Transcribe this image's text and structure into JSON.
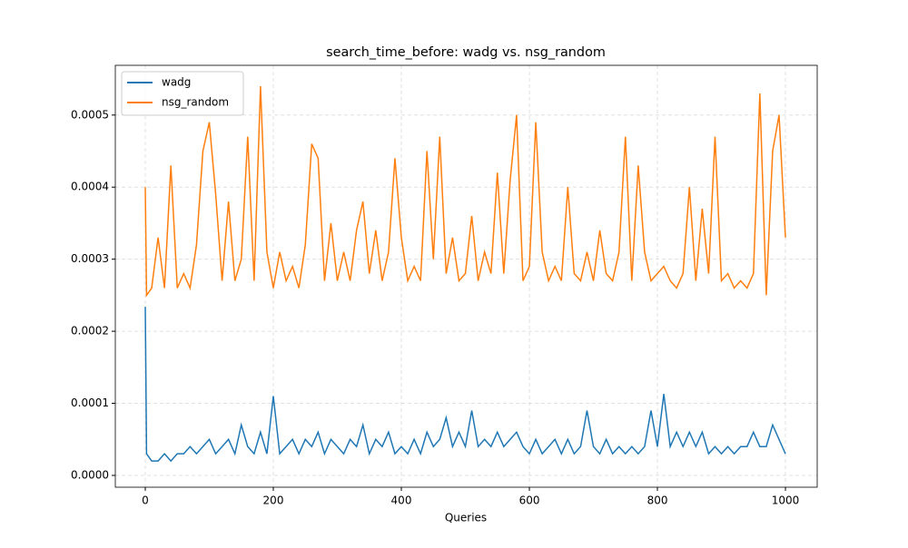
{
  "chart_data": {
    "type": "line",
    "title": "search_time_before: wadg vs. nsg_random",
    "x_label": "Queries",
    "x": [
      0,
      2,
      10,
      20,
      30,
      40,
      50,
      60,
      70,
      80,
      90,
      100,
      110,
      120,
      130,
      140,
      150,
      160,
      170,
      180,
      190,
      200,
      210,
      220,
      230,
      240,
      250,
      260,
      270,
      280,
      290,
      300,
      310,
      320,
      330,
      340,
      350,
      360,
      370,
      380,
      390,
      400,
      410,
      420,
      430,
      440,
      450,
      460,
      470,
      480,
      490,
      500,
      510,
      520,
      530,
      540,
      550,
      560,
      570,
      580,
      590,
      600,
      610,
      620,
      630,
      640,
      650,
      660,
      670,
      680,
      690,
      700,
      710,
      720,
      730,
      740,
      750,
      760,
      770,
      780,
      790,
      800,
      810,
      820,
      830,
      840,
      850,
      860,
      870,
      880,
      890,
      900,
      910,
      920,
      930,
      940,
      950,
      960,
      970,
      980,
      990,
      1000
    ],
    "series": [
      {
        "name": "wadg",
        "color": "#1f77b4",
        "values": [
          0.000234,
          3e-05,
          2e-05,
          2e-05,
          3e-05,
          2e-05,
          3e-05,
          3e-05,
          4e-05,
          3e-05,
          4e-05,
          5e-05,
          3e-05,
          4e-05,
          5e-05,
          3e-05,
          7e-05,
          4e-05,
          3e-05,
          6e-05,
          3e-05,
          0.00011,
          3e-05,
          4e-05,
          5e-05,
          3e-05,
          5e-05,
          4e-05,
          6e-05,
          3e-05,
          5e-05,
          4e-05,
          3e-05,
          5e-05,
          4e-05,
          7e-05,
          3e-05,
          5e-05,
          4e-05,
          6e-05,
          3e-05,
          4e-05,
          3e-05,
          5e-05,
          3e-05,
          6e-05,
          4e-05,
          5e-05,
          8e-05,
          4e-05,
          6e-05,
          4e-05,
          9e-05,
          4e-05,
          5e-05,
          4e-05,
          6e-05,
          4e-05,
          5e-05,
          6e-05,
          4e-05,
          3e-05,
          5e-05,
          3e-05,
          4e-05,
          5e-05,
          3e-05,
          5e-05,
          3e-05,
          4e-05,
          9e-05,
          4e-05,
          3e-05,
          5e-05,
          3e-05,
          4e-05,
          3e-05,
          4e-05,
          3e-05,
          4e-05,
          9e-05,
          4e-05,
          0.000113,
          4e-05,
          6e-05,
          4e-05,
          6e-05,
          4e-05,
          6e-05,
          3e-05,
          4e-05,
          3e-05,
          4e-05,
          3e-05,
          4e-05,
          4e-05,
          6e-05,
          4e-05,
          4e-05,
          7e-05,
          5e-05,
          3e-05
        ]
      },
      {
        "name": "nsg_random",
        "color": "#ff7f0e",
        "values": [
          0.0004,
          0.00025,
          0.00026,
          0.00033,
          0.00026,
          0.00043,
          0.00026,
          0.00028,
          0.00026,
          0.00032,
          0.00045,
          0.00049,
          0.00039,
          0.00027,
          0.00038,
          0.00027,
          0.0003,
          0.00047,
          0.00027,
          0.00054,
          0.00031,
          0.00026,
          0.00031,
          0.00027,
          0.00029,
          0.00026,
          0.00032,
          0.00046,
          0.00044,
          0.00027,
          0.00035,
          0.00027,
          0.00031,
          0.00027,
          0.00034,
          0.00038,
          0.00028,
          0.00034,
          0.00027,
          0.00031,
          0.00044,
          0.00033,
          0.00027,
          0.00029,
          0.00027,
          0.00045,
          0.0003,
          0.00047,
          0.00028,
          0.00033,
          0.00027,
          0.00028,
          0.00036,
          0.00027,
          0.00031,
          0.00028,
          0.00042,
          0.00028,
          0.00041,
          0.0005,
          0.00027,
          0.00029,
          0.00049,
          0.00031,
          0.00027,
          0.00029,
          0.00027,
          0.0004,
          0.00028,
          0.00027,
          0.00031,
          0.00027,
          0.00034,
          0.00028,
          0.00027,
          0.00031,
          0.00047,
          0.00027,
          0.00043,
          0.00031,
          0.00027,
          0.00028,
          0.00029,
          0.00027,
          0.00026,
          0.00028,
          0.0004,
          0.00027,
          0.00037,
          0.00028,
          0.00047,
          0.00027,
          0.00028,
          0.00026,
          0.00027,
          0.00026,
          0.00028,
          0.00053,
          0.00025,
          0.00045,
          0.0005,
          0.00033
        ]
      }
    ],
    "xlim": [
      -46.8,
      1049.6
    ],
    "xticks": [
      0,
      200,
      400,
      600,
      800,
      1000
    ],
    "ylim": [
      -1.64e-05,
      0.000569
    ],
    "yticks": [
      {
        "value": 0,
        "label": "0.0000"
      },
      {
        "value": 0.0001,
        "label": "0.0001"
      },
      {
        "value": 0.0002,
        "label": "0.0002"
      },
      {
        "value": 0.0003,
        "label": "0.0003"
      },
      {
        "value": 0.0004,
        "label": "0.0004"
      },
      {
        "value": 0.0005,
        "label": "0.0005"
      }
    ],
    "grid": true,
    "legend": "upper left"
  }
}
